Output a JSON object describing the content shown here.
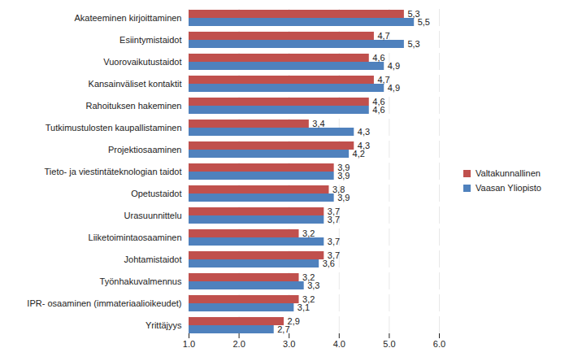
{
  "chart_data": {
    "type": "bar",
    "orientation": "horizontal",
    "categories": [
      "Akateeminen kirjoittaminen",
      "Esiintymistaidot",
      "Vuorovaikutustaidot",
      "Kansainväliset kontaktit",
      "Rahoituksen hakeminen",
      "Tutkimustulosten kaupallistaminen",
      "Projektiosaaminen",
      "Tieto- ja viestintäteknologian taidot",
      "Opetustaidot",
      "Urasuunnittelu",
      "Liiketoimintaosaaminen",
      "Johtamistaidot",
      "Työnhakuvalmennus",
      "IPR- osaaminen (immateriaalioikeudet)",
      "Yrittäjyys"
    ],
    "series": [
      {
        "name": "Valtakunnallinen",
        "color": "#c0504d",
        "values": [
          5.3,
          4.7,
          4.6,
          4.7,
          4.6,
          3.4,
          4.3,
          3.9,
          3.8,
          3.7,
          3.2,
          3.7,
          3.2,
          3.2,
          2.9
        ],
        "value_labels": [
          "5,3",
          "4,7",
          "4,6",
          "4,7",
          "4,6",
          "3,4",
          "4,3",
          "3,9",
          "3,8",
          "3,7",
          "3,2",
          "3,7",
          "3,2",
          "3,2",
          "2,9"
        ]
      },
      {
        "name": "Vaasan Yliopisto",
        "color": "#4f81bd",
        "values": [
          5.5,
          5.3,
          4.9,
          4.9,
          4.6,
          4.3,
          4.2,
          3.9,
          3.9,
          3.7,
          3.7,
          3.6,
          3.3,
          3.1,
          2.7
        ],
        "value_labels": [
          "5,5",
          "5,3",
          "4,9",
          "4,9",
          "4,6",
          "4,3",
          "4,2",
          "3,9",
          "3,9",
          "3,7",
          "3,7",
          "3,6",
          "3,3",
          "3,1",
          "2,7"
        ]
      }
    ],
    "xlim": [
      1,
      6
    ],
    "xticks": [
      1,
      2,
      3,
      4,
      5,
      6
    ],
    "grid": true,
    "data_labels": true,
    "legend": "right"
  }
}
